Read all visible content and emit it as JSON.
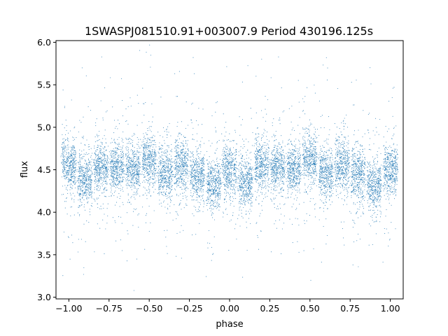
{
  "chart_data": {
    "type": "scatter",
    "title": "1SWASPJ081510.91+003007.9 Period 430196.125s",
    "xlabel": "phase",
    "ylabel": "flux",
    "xlim": [
      -1.08,
      1.08
    ],
    "ylim": [
      2.98,
      6.02
    ],
    "xticks": [
      -1.0,
      -0.75,
      -0.5,
      -0.25,
      0.0,
      0.25,
      0.5,
      0.75,
      1.0
    ],
    "xtick_labels": [
      "−1.00",
      "−0.75",
      "−0.50",
      "−0.25",
      "0.00",
      "0.25",
      "0.50",
      "0.75",
      "1.00"
    ],
    "yticks": [
      3.0,
      3.5,
      4.0,
      4.5,
      5.0,
      5.5,
      6.0
    ],
    "ytick_labels": [
      "3.0",
      "3.5",
      "4.0",
      "4.5",
      "5.0",
      "5.5",
      "6.0"
    ],
    "grid": false,
    "marker_color": "#1f77b4",
    "clusters": [
      {
        "phase": -1.0,
        "median_flux": 4.55
      },
      {
        "phase": -0.9,
        "median_flux": 4.37
      },
      {
        "phase": -0.8,
        "median_flux": 4.52
      },
      {
        "phase": -0.7,
        "median_flux": 4.52
      },
      {
        "phase": -0.6,
        "median_flux": 4.5
      },
      {
        "phase": -0.5,
        "median_flux": 4.6
      },
      {
        "phase": -0.4,
        "median_flux": 4.45
      },
      {
        "phase": -0.3,
        "median_flux": 4.55
      },
      {
        "phase": -0.2,
        "median_flux": 4.45
      },
      {
        "phase": -0.1,
        "median_flux": 4.33
      },
      {
        "phase": 0.0,
        "median_flux": 4.5
      },
      {
        "phase": 0.1,
        "median_flux": 4.35
      },
      {
        "phase": 0.2,
        "median_flux": 4.55
      },
      {
        "phase": 0.3,
        "median_flux": 4.52
      },
      {
        "phase": 0.4,
        "median_flux": 4.5
      },
      {
        "phase": 0.5,
        "median_flux": 4.62
      },
      {
        "phase": 0.6,
        "median_flux": 4.45
      },
      {
        "phase": 0.7,
        "median_flux": 4.55
      },
      {
        "phase": 0.8,
        "median_flux": 4.45
      },
      {
        "phase": 0.9,
        "median_flux": 4.33
      },
      {
        "phase": 1.0,
        "median_flux": 4.5
      }
    ]
  }
}
